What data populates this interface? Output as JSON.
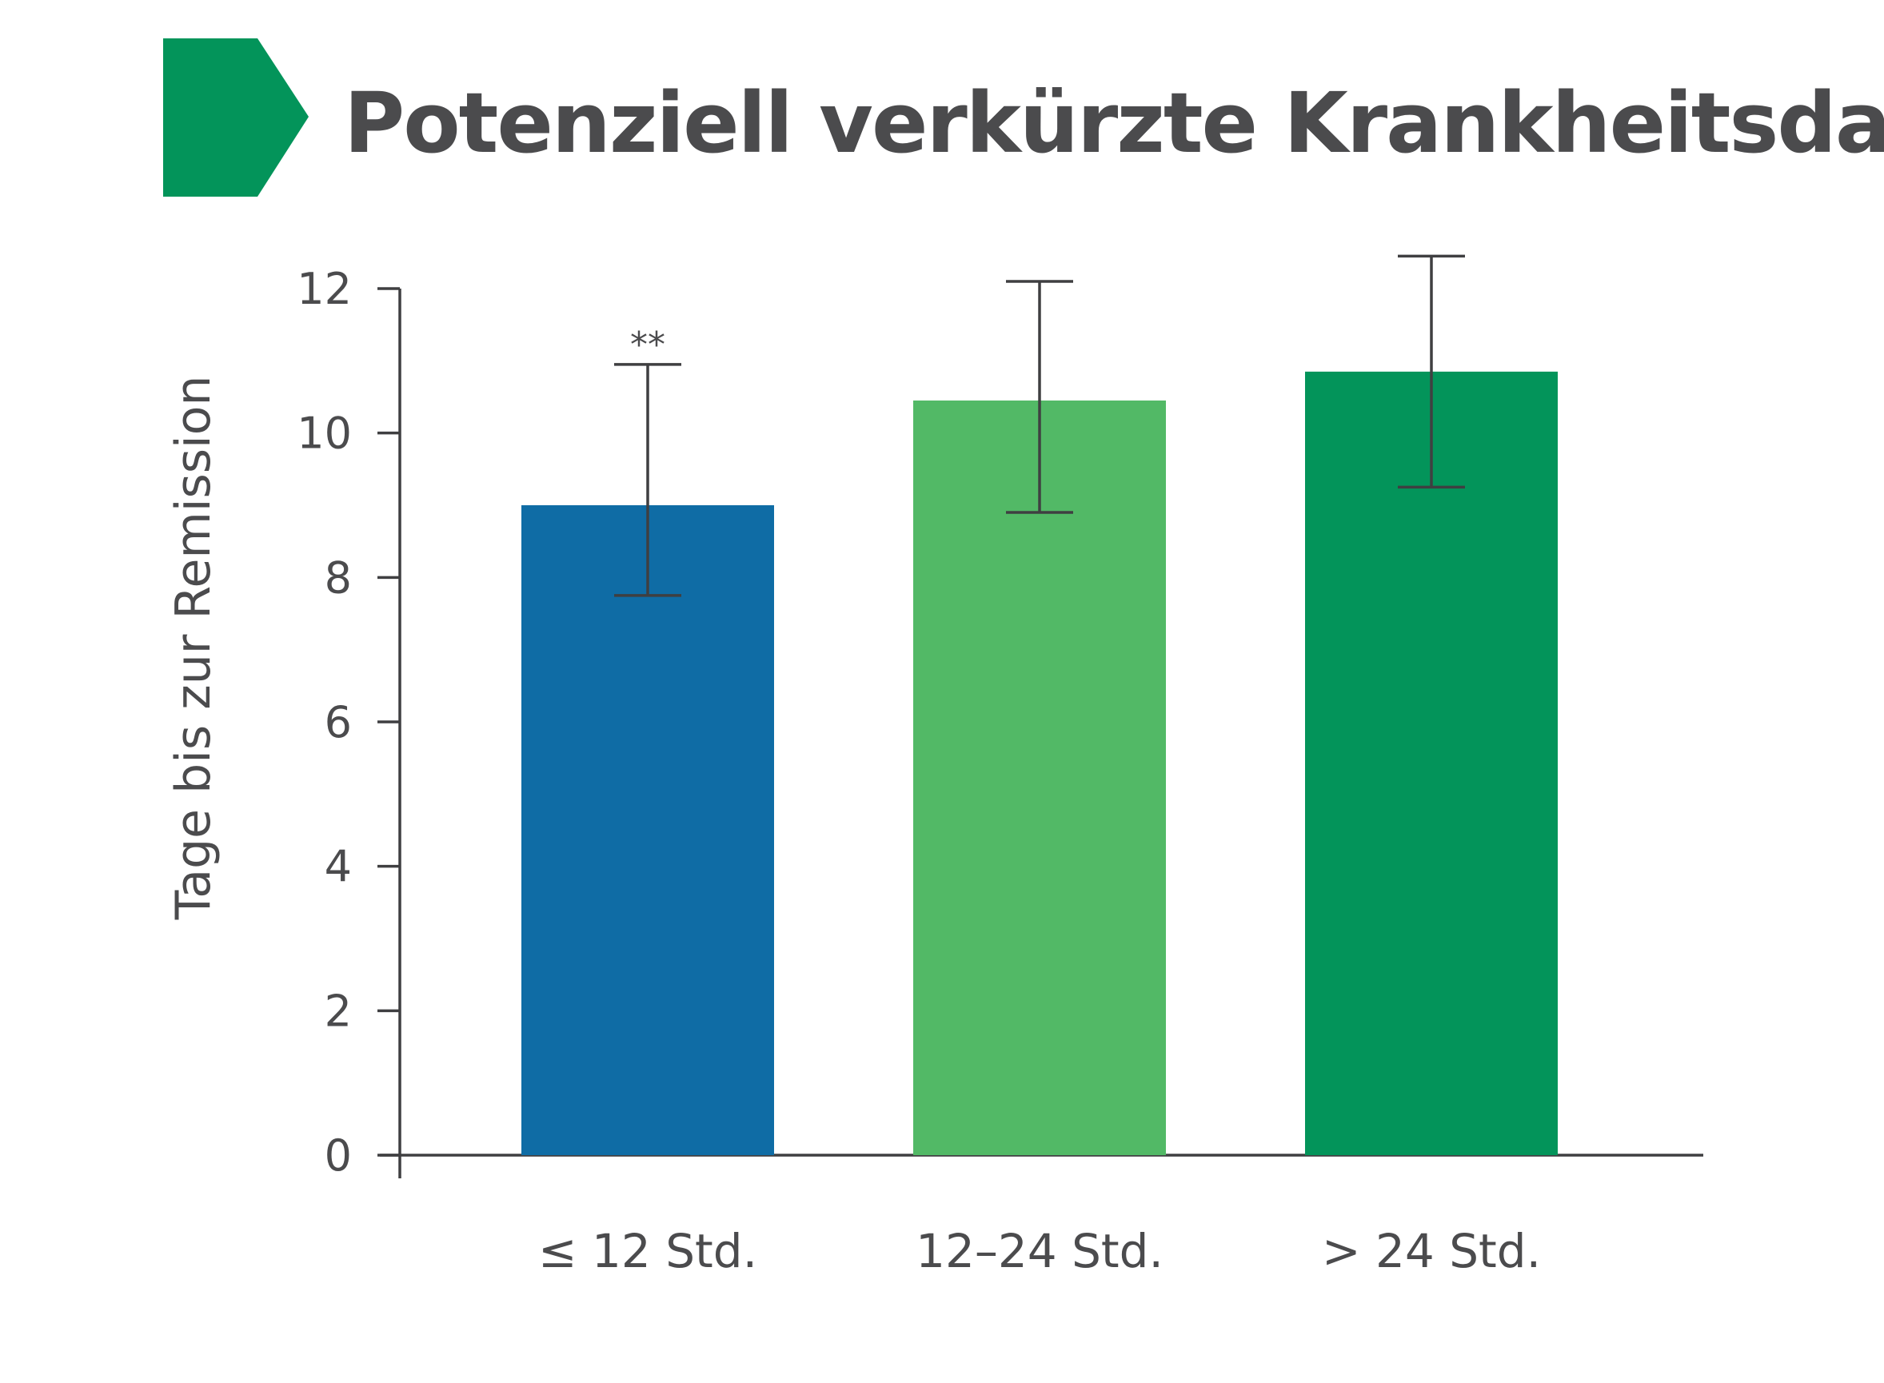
{
  "colors": {
    "accent": "#03945a",
    "text": "#4b4b4d",
    "axis": "#3f3f41",
    "error_bar": "#3f3f41"
  },
  "header": {
    "marker_icon": "green-arrow-tab-icon",
    "title": "Potenziell verkürzte Krankheitsdauer"
  },
  "chart_data": {
    "type": "bar",
    "title": "Potenziell verkürzte Krankheitsdauer",
    "xlabel": "",
    "ylabel": "Tage bis zur Remission",
    "ylim": [
      0,
      12
    ],
    "yticks": [
      0,
      2,
      4,
      6,
      8,
      10,
      12
    ],
    "ytick_labels": [
      "0",
      "2",
      "4",
      "6",
      "8",
      "10",
      "12"
    ],
    "categories": [
      "≤ 12 Std.",
      "12–24 Std.",
      "> 24 Std."
    ],
    "values": [
      9.0,
      10.45,
      10.85
    ],
    "error_low": [
      7.75,
      8.9,
      9.25
    ],
    "error_high": [
      10.95,
      12.1,
      12.45
    ],
    "bar_colors": [
      "#0f6ca5",
      "#52b966",
      "#03945a"
    ],
    "annotations": [
      {
        "category": "≤ 12 Std.",
        "text": "**"
      }
    ],
    "grid": false,
    "legend": "none"
  }
}
